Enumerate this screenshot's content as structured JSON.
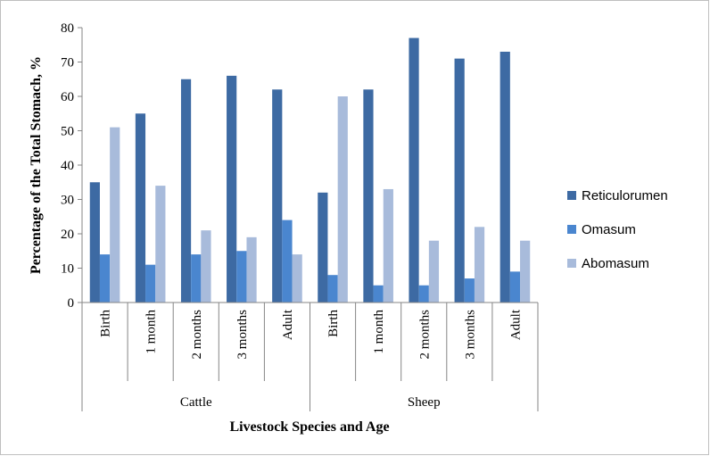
{
  "chart_data": {
    "type": "bar",
    "xlabel": "Livestock Species and Age",
    "ylabel": "Percentage of the Total Stomach, %",
    "ylim": [
      0,
      80
    ],
    "yticks": [
      0,
      10,
      20,
      30,
      40,
      50,
      60,
      70,
      80
    ],
    "groups": [
      {
        "label": "Cattle",
        "categories": [
          "Birth",
          "1 month",
          "2 months",
          "3 months",
          "Adult"
        ]
      },
      {
        "label": "Sheep",
        "categories": [
          "Birth",
          "1 month",
          "2 months",
          "3 months",
          "Adult"
        ]
      }
    ],
    "series": [
      {
        "name": "Reticulorumen",
        "color": "#3d6aa3",
        "values": [
          35,
          55,
          65,
          66,
          62,
          32,
          62,
          77,
          71,
          73
        ]
      },
      {
        "name": "Omasum",
        "color": "#4a86cf",
        "values": [
          14,
          11,
          14,
          15,
          24,
          8,
          5,
          5,
          7,
          9
        ]
      },
      {
        "name": "Abomasum",
        "color": "#a8bbdb",
        "values": [
          51,
          34,
          21,
          19,
          14,
          60,
          33,
          18,
          22,
          18
        ]
      }
    ],
    "grid": false,
    "legend": "right"
  }
}
